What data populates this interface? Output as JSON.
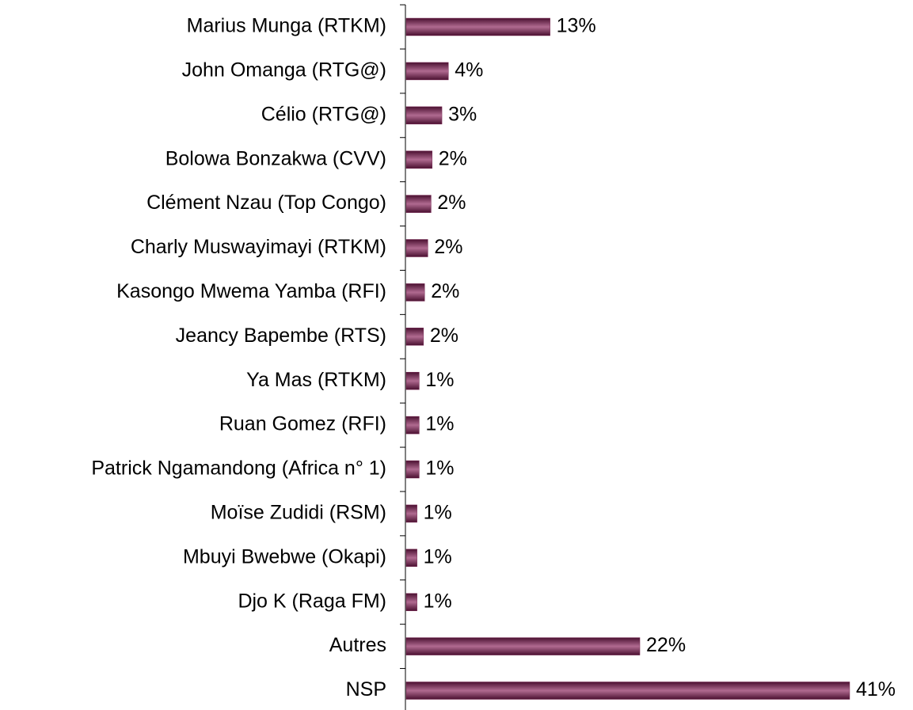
{
  "chart_data": {
    "type": "barh",
    "categories": [
      "Marius Munga (RTKM)",
      "John Omanga (RTG@)",
      "Célio (RTG@)",
      "Bolowa Bonzakwa (CVV)",
      "Clément Nzau (Top Congo)",
      "Charly Muswayimayi (RTKM)",
      "Kasongo Mwema Yamba (RFI)",
      "Jeancy Bapembe (RTS)",
      "Ya Mas (RTKM)",
      "Ruan Gomez (RFI)",
      "Patrick Ngamandong (Africa n° 1)",
      "Moïse Zudidi (RSM)",
      "Mbuyi Bwebwe (Okapi)",
      "Djo K (Raga FM)",
      "Autres",
      "NSP"
    ],
    "values": [
      13.3,
      3.9,
      3.3,
      2.4,
      2.3,
      2.0,
      1.7,
      1.6,
      1.2,
      1.2,
      1.2,
      1.0,
      1.0,
      1.0,
      21.6,
      41.0
    ],
    "value_labels": [
      "13%",
      "4%",
      "3%",
      "2%",
      "2%",
      "2%",
      "2%",
      "2%",
      "1%",
      "1%",
      "1%",
      "1%",
      "1%",
      "1%",
      "22%",
      "41%"
    ],
    "color": "#7a2a55"
  }
}
